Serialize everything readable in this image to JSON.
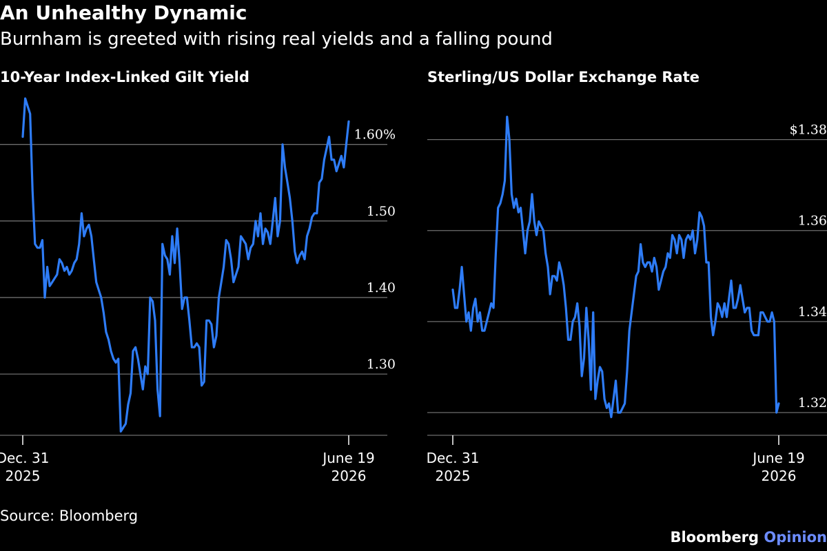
{
  "title": "An Unhealthy Dynamic",
  "subtitle": "Burnham is greeted with rising real yields and a falling pound",
  "source": "Source: Bloomberg",
  "brand": {
    "name": "Bloomberg",
    "accent": "Opinion"
  },
  "colors": {
    "background": "#000000",
    "line": "#2e7cf6",
    "grid": "#6e6e6e",
    "text": "#ffffff"
  },
  "chart_data": [
    {
      "type": "line",
      "title": "10-Year Index-Linked Gilt Yield",
      "x_start": "Dec. 31 2025",
      "x_end": "June 19 2026",
      "xtick_labels": [
        [
          "Dec. 31",
          "2025"
        ],
        [
          "June 19",
          "2026"
        ]
      ],
      "ytick_values": [
        1.3,
        1.4,
        1.5,
        1.6
      ],
      "ytick_labels": [
        "1.30",
        "1.40",
        "1.50",
        "1.60%"
      ],
      "ylim": [
        1.22,
        1.66
      ],
      "axis_side": "right",
      "grid": true,
      "series": [
        {
          "values": [
            1.61,
            1.66,
            1.65,
            1.64,
            1.54,
            1.47,
            1.465,
            1.465,
            1.475,
            1.4,
            1.44,
            1.415,
            1.42,
            1.425,
            1.43,
            1.45,
            1.445,
            1.435,
            1.44,
            1.43,
            1.435,
            1.445,
            1.45,
            1.47,
            1.51,
            1.48,
            1.49,
            1.495,
            1.48,
            1.45,
            1.42,
            1.41,
            1.4,
            1.38,
            1.355,
            1.345,
            1.33,
            1.32,
            1.315,
            1.32,
            1.225,
            1.23,
            1.235,
            1.26,
            1.275,
            1.33,
            1.335,
            1.32,
            1.3,
            1.28,
            1.31,
            1.3,
            1.4,
            1.395,
            1.37,
            1.28,
            1.245,
            1.47,
            1.455,
            1.45,
            1.43,
            1.48,
            1.445,
            1.49,
            1.445,
            1.385,
            1.4,
            1.4,
            1.37,
            1.335,
            1.335,
            1.34,
            1.335,
            1.285,
            1.29,
            1.37,
            1.37,
            1.365,
            1.335,
            1.35,
            1.4,
            1.42,
            1.44,
            1.475,
            1.47,
            1.45,
            1.42,
            1.43,
            1.44,
            1.48,
            1.475,
            1.47,
            1.45,
            1.465,
            1.47,
            1.5,
            1.48,
            1.51,
            1.47,
            1.49,
            1.485,
            1.47,
            1.5,
            1.53,
            1.48,
            1.5,
            1.6,
            1.57,
            1.55,
            1.53,
            1.5,
            1.46,
            1.445,
            1.455,
            1.46,
            1.45,
            1.48,
            1.49,
            1.505,
            1.51,
            1.51,
            1.55,
            1.555,
            1.58,
            1.595,
            1.61,
            1.58,
            1.58,
            1.565,
            1.575,
            1.585,
            1.57,
            1.6,
            1.63
          ]
        }
      ]
    },
    {
      "type": "line",
      "title": "Sterling/US Dollar Exchange Rate",
      "x_start": "Dec. 31 2025",
      "x_end": "June 19 2026",
      "xtick_labels": [
        [
          "Dec. 31",
          "2025"
        ],
        [
          "June 19",
          "2026"
        ]
      ],
      "ytick_values": [
        1.32,
        1.34,
        1.36,
        1.38
      ],
      "ytick_labels": [
        "1.32",
        "1.34",
        "1.36",
        "$1.38"
      ],
      "ylim": [
        1.315,
        1.386
      ],
      "axis_side": "right",
      "grid": true,
      "series": [
        {
          "values": [
            1.347,
            1.343,
            1.343,
            1.347,
            1.352,
            1.346,
            1.34,
            1.342,
            1.338,
            1.343,
            1.345,
            1.34,
            1.342,
            1.338,
            1.338,
            1.34,
            1.342,
            1.344,
            1.343,
            1.355,
            1.365,
            1.366,
            1.368,
            1.371,
            1.385,
            1.38,
            1.368,
            1.365,
            1.367,
            1.364,
            1.365,
            1.36,
            1.355,
            1.36,
            1.362,
            1.368,
            1.362,
            1.359,
            1.362,
            1.361,
            1.36,
            1.355,
            1.352,
            1.346,
            1.35,
            1.35,
            1.349,
            1.353,
            1.351,
            1.348,
            1.343,
            1.336,
            1.336,
            1.34,
            1.341,
            1.344,
            1.339,
            1.328,
            1.332,
            1.343,
            1.336,
            1.325,
            1.342,
            1.323,
            1.327,
            1.33,
            1.329,
            1.323,
            1.321,
            1.322,
            1.319,
            1.323,
            1.327,
            1.32,
            1.32,
            1.321,
            1.322,
            1.329,
            1.338,
            1.342,
            1.346,
            1.35,
            1.351,
            1.357,
            1.353,
            1.352,
            1.353,
            1.353,
            1.351,
            1.354,
            1.352,
            1.347,
            1.349,
            1.351,
            1.352,
            1.355,
            1.354,
            1.359,
            1.358,
            1.355,
            1.359,
            1.358,
            1.354,
            1.358,
            1.359,
            1.358,
            1.36,
            1.355,
            1.358,
            1.364,
            1.363,
            1.361,
            1.353,
            1.353,
            1.341,
            1.337,
            1.34,
            1.344,
            1.343,
            1.341,
            1.344,
            1.341,
            1.345,
            1.349,
            1.343,
            1.343,
            1.345,
            1.348,
            1.345,
            1.342,
            1.343,
            1.343,
            1.338,
            1.337,
            1.337,
            1.337,
            1.342,
            1.342,
            1.341,
            1.34,
            1.34,
            1.342,
            1.34,
            1.32,
            1.322
          ]
        }
      ]
    }
  ]
}
